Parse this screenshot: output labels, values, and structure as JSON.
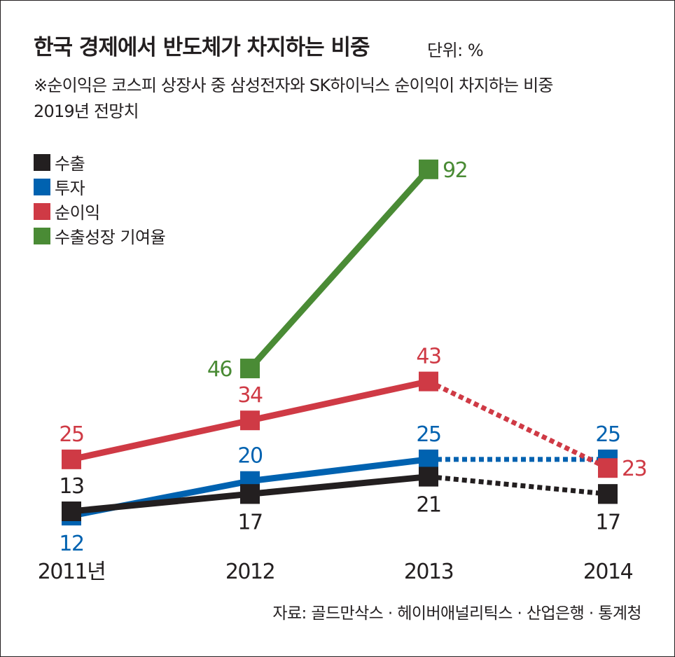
{
  "title": "한국 경제에서 반도체가 차지하는 비중",
  "unit": "단위: %",
  "notes": [
    "※순이익은 코스피 상장사 중 삼성전자와 SK하이닉스 순이익이 차지하는 비중",
    "2019년 전망치"
  ],
  "source": "자료: 골드만삭스 · 헤이버애널리틱스 · 산업은행 · 통계청",
  "chart_data": {
    "type": "line",
    "title": "한국 경제에서 반도체가 차지하는 비중",
    "categories": [
      "2011년",
      "2012",
      "2013",
      "2014"
    ],
    "legend_position": "top-left",
    "grid": false,
    "series": [
      {
        "name": "수출",
        "color": "#231f20",
        "values": [
          13,
          17,
          21,
          17
        ],
        "label_side": [
          "above",
          "below",
          "below",
          "below"
        ],
        "projected_from": 2
      },
      {
        "name": "투자",
        "color": "#0062b0",
        "values": [
          12,
          20,
          25,
          25
        ],
        "label_side": [
          "below",
          "above",
          "above",
          "above"
        ],
        "projected_from": 2
      },
      {
        "name": "순이익",
        "color": "#cf3a45",
        "values": [
          25,
          34,
          43,
          23
        ],
        "label_side": [
          "above",
          "above",
          "above",
          "right"
        ],
        "projected_from": 2
      },
      {
        "name": "수출성장 기여율",
        "color": "#4a8b35",
        "values": [
          null,
          46,
          92,
          null
        ],
        "label_side": [
          null,
          "left",
          "right",
          null
        ],
        "projected_from": null
      }
    ]
  }
}
